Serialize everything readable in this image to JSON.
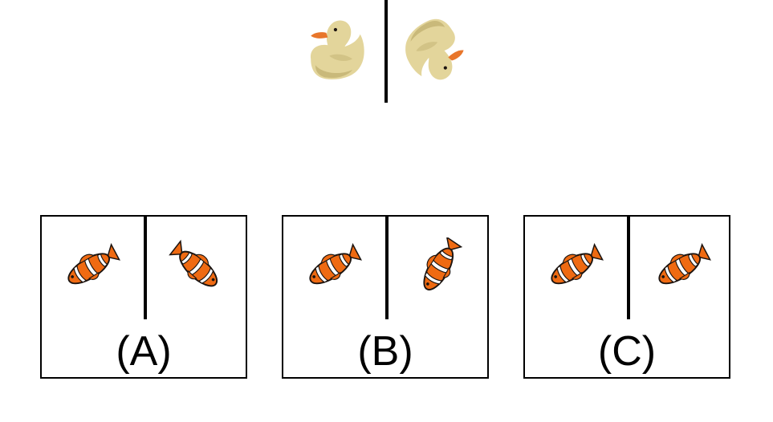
{
  "colors": {
    "duck_body": "#e3d59b",
    "duck_shadow": "#c9b97a",
    "duck_beak": "#e8762b",
    "fish_orange": "#ef6a12",
    "fish_white": "#ffffff",
    "fish_black": "#1c1410",
    "outline": "#000000"
  },
  "reference": {
    "left_icon": "rubber-duck-icon",
    "right_icon": "rubber-duck-rotated-icon"
  },
  "options": [
    {
      "label": "(A)",
      "left_icon": "clownfish-icon",
      "right_icon": "clownfish-rotated-icon"
    },
    {
      "label": "(B)",
      "left_icon": "clownfish-icon",
      "right_icon": "clownfish-rotated-icon"
    },
    {
      "label": "(C)",
      "left_icon": "clownfish-icon",
      "right_icon": "clownfish-icon"
    }
  ]
}
